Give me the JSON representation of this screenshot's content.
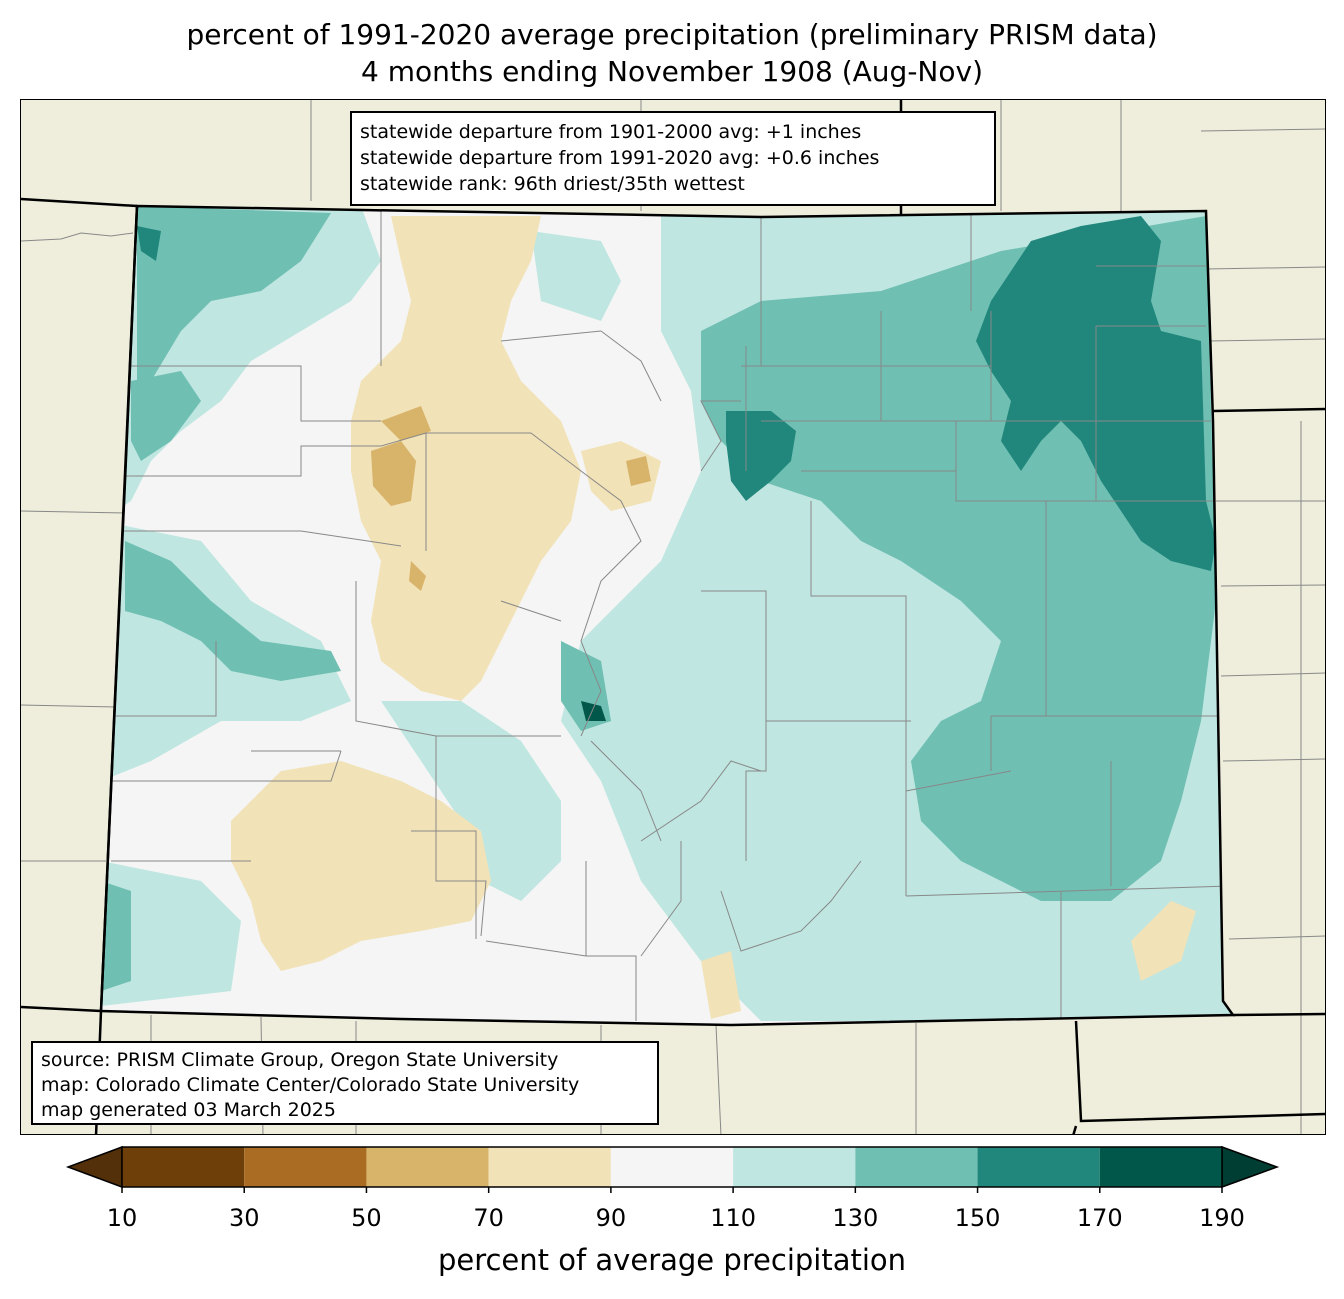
{
  "title": {
    "line1": "percent of 1991-2020 average precipitation (preliminary PRISM data)",
    "line2": "4 months ending November 1908 (Aug-Nov)"
  },
  "stats": {
    "line1": "statewide departure from 1901-2000 avg: +1 inches",
    "line2": "statewide departure from 1991-2020 avg: +0.6 inches",
    "line3": "statewide rank: 96th driest/35th wettest"
  },
  "source": {
    "line1": "source: PRISM Climate Group, Oregon State University",
    "line2": "map: Colorado Climate Center/Colorado State University",
    "line3": "map generated 03 March 2025"
  },
  "colorbar": {
    "label": "percent of average precipitation",
    "ticks": [
      "10",
      "30",
      "50",
      "70",
      "90",
      "110",
      "130",
      "150",
      "170",
      "190"
    ],
    "colors": [
      "#6f3f0a",
      "#a96c22",
      "#d8b36a",
      "#f2e2b8",
      "#f4f5f4",
      "#bfe6e0",
      "#6fbfb3",
      "#21877c",
      "#00574a"
    ],
    "under_color": "#54300a",
    "over_color": "#003d33"
  },
  "map_colors": {
    "land_outside": "#efeedc",
    "border": "#000000",
    "county_lines": "#888888"
  }
}
